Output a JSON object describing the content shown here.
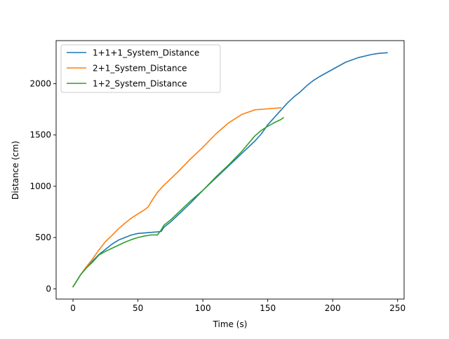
{
  "chart_data": {
    "type": "line",
    "title": "",
    "xlabel": "Time (s)",
    "ylabel": "Distance (cm)",
    "xlim": [
      -13,
      255
    ],
    "ylim": [
      -100,
      2420
    ],
    "xticks": [
      0,
      50,
      100,
      150,
      200,
      250
    ],
    "yticks": [
      0,
      500,
      1000,
      1500,
      2000
    ],
    "grid": false,
    "legend_position": "top-left",
    "series": [
      {
        "name": "1+1+1_System_Distance",
        "color": "#1f77b4",
        "points": [
          [
            0,
            20
          ],
          [
            3,
            80
          ],
          [
            6,
            140
          ],
          [
            10,
            200
          ],
          [
            15,
            270
          ],
          [
            20,
            335
          ],
          [
            25,
            385
          ],
          [
            30,
            435
          ],
          [
            35,
            475
          ],
          [
            40,
            500
          ],
          [
            45,
            525
          ],
          [
            50,
            540
          ],
          [
            55,
            545
          ],
          [
            60,
            550
          ],
          [
            65,
            555
          ],
          [
            68,
            560
          ],
          [
            70,
            600
          ],
          [
            75,
            650
          ],
          [
            80,
            710
          ],
          [
            90,
            830
          ],
          [
            100,
            960
          ],
          [
            110,
            1080
          ],
          [
            120,
            1200
          ],
          [
            130,
            1320
          ],
          [
            140,
            1440
          ],
          [
            145,
            1510
          ],
          [
            150,
            1600
          ],
          [
            160,
            1740
          ],
          [
            165,
            1810
          ],
          [
            170,
            1870
          ],
          [
            175,
            1920
          ],
          [
            180,
            1980
          ],
          [
            185,
            2030
          ],
          [
            190,
            2070
          ],
          [
            200,
            2140
          ],
          [
            210,
            2210
          ],
          [
            220,
            2255
          ],
          [
            230,
            2285
          ],
          [
            235,
            2295
          ],
          [
            242,
            2302
          ]
        ]
      },
      {
        "name": "2+1_System_Distance",
        "color": "#ff7f0e",
        "points": [
          [
            0,
            20
          ],
          [
            3,
            80
          ],
          [
            6,
            140
          ],
          [
            10,
            210
          ],
          [
            15,
            290
          ],
          [
            20,
            380
          ],
          [
            25,
            460
          ],
          [
            30,
            520
          ],
          [
            35,
            585
          ],
          [
            40,
            640
          ],
          [
            45,
            690
          ],
          [
            50,
            730
          ],
          [
            55,
            770
          ],
          [
            58,
            800
          ],
          [
            60,
            845
          ],
          [
            65,
            940
          ],
          [
            70,
            1010
          ],
          [
            80,
            1130
          ],
          [
            90,
            1260
          ],
          [
            100,
            1380
          ],
          [
            110,
            1510
          ],
          [
            120,
            1620
          ],
          [
            130,
            1700
          ],
          [
            140,
            1745
          ],
          [
            150,
            1755
          ],
          [
            160,
            1765
          ]
        ]
      },
      {
        "name": "1+2_System_Distance",
        "color": "#2ca02c",
        "points": [
          [
            0,
            20
          ],
          [
            3,
            80
          ],
          [
            6,
            140
          ],
          [
            10,
            200
          ],
          [
            15,
            260
          ],
          [
            20,
            330
          ],
          [
            25,
            365
          ],
          [
            30,
            395
          ],
          [
            35,
            425
          ],
          [
            40,
            455
          ],
          [
            45,
            480
          ],
          [
            50,
            500
          ],
          [
            55,
            515
          ],
          [
            60,
            525
          ],
          [
            65,
            525
          ],
          [
            68,
            575
          ],
          [
            70,
            620
          ],
          [
            75,
            670
          ],
          [
            80,
            730
          ],
          [
            90,
            850
          ],
          [
            100,
            960
          ],
          [
            110,
            1090
          ],
          [
            120,
            1210
          ],
          [
            130,
            1340
          ],
          [
            140,
            1490
          ],
          [
            145,
            1545
          ],
          [
            150,
            1585
          ],
          [
            155,
            1620
          ],
          [
            160,
            1650
          ],
          [
            162,
            1668
          ]
        ]
      }
    ]
  }
}
